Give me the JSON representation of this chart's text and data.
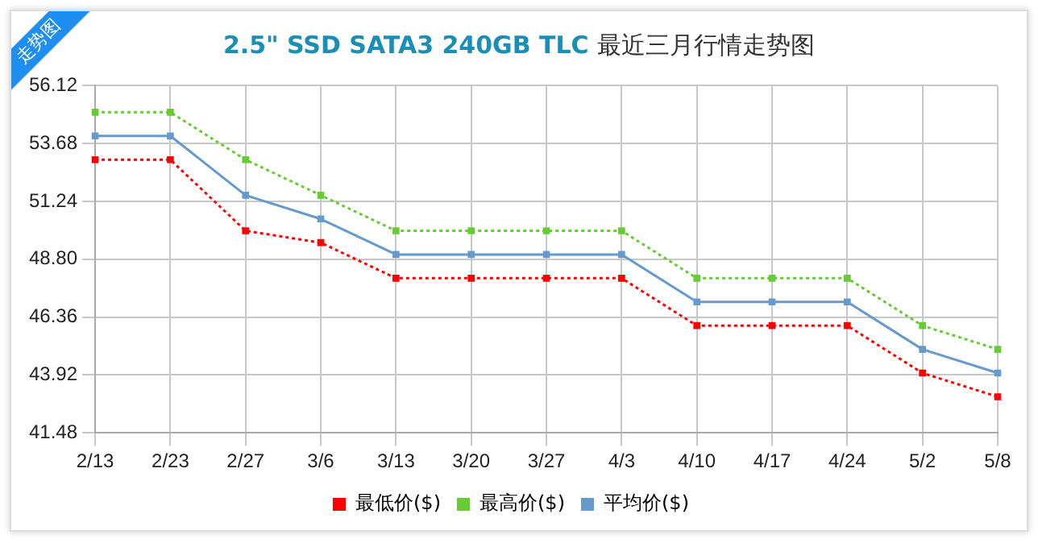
{
  "chart_data": {
    "type": "line",
    "title": "2.5\" SSD SATA3 240GB TLC 最近三月行情走势图",
    "annotations": [
      "走势图"
    ],
    "categories": [
      "2/13",
      "2/23",
      "2/27",
      "3/6",
      "3/13",
      "3/20",
      "3/27",
      "4/3",
      "4/10",
      "4/17",
      "4/24",
      "5/2",
      "5/8"
    ],
    "series": [
      {
        "name": "最低价($)",
        "color": "#ff0000",
        "line_style": "dotted",
        "values": [
          53,
          53,
          50,
          49.5,
          48,
          48,
          48,
          48,
          46,
          46,
          46,
          44,
          43
        ]
      },
      {
        "name": "最高价($)",
        "color": "#66cc33",
        "line_style": "dotted",
        "values": [
          55,
          55,
          53,
          51.5,
          50,
          50,
          50,
          50,
          48,
          48,
          48,
          46,
          45
        ]
      },
      {
        "name": "平均价($)",
        "color": "#6699cc",
        "line_style": "solid",
        "values": [
          54,
          54,
          51.5,
          50.5,
          49,
          49,
          49,
          49,
          47,
          47,
          47,
          45,
          44
        ]
      }
    ],
    "ylim": [
      41.48,
      56.12
    ],
    "yticks": [
      41.48,
      43.92,
      46.36,
      {
        "value": 48.8,
        "label": "48.80"
      },
      51.24,
      53.68,
      56.12
    ],
    "grid": true,
    "legend": "bottom",
    "marker": "square"
  }
}
